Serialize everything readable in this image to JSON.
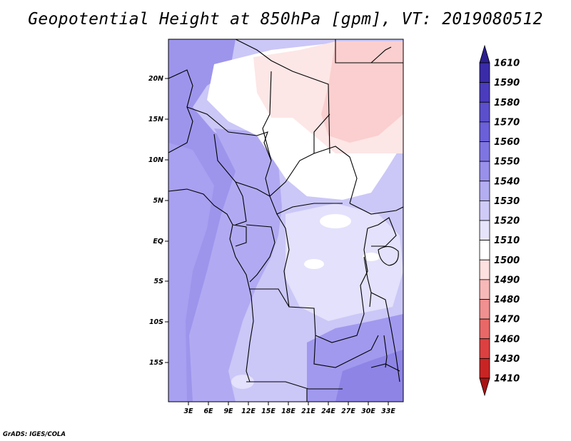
{
  "title": "Geopotential Height at 850hPa [gpm], VT: 2019080512",
  "credit": "GrADS: IGES/COLA",
  "lat_ticks": [
    "20N",
    "15N",
    "10N",
    "5N",
    "EQ",
    "5S",
    "10S",
    "15S"
  ],
  "lon_ticks": [
    "3E",
    "6E",
    "9E",
    "12E",
    "15E",
    "18E",
    "21E",
    "24E",
    "27E",
    "30E",
    "33E"
  ],
  "colorbar": {
    "labels": [
      "1610",
      "1590",
      "1580",
      "1570",
      "1560",
      "1550",
      "1540",
      "1530",
      "1520",
      "1510",
      "1500",
      "1490",
      "1480",
      "1470",
      "1460",
      "1430",
      "1410"
    ],
    "colors": [
      "#2c1f8e",
      "#3a2ba8",
      "#4a3cbc",
      "#5b4fcc",
      "#6b60d8",
      "#7f75e2",
      "#9890ea",
      "#b3adf1",
      "#cfcbf7",
      "#e6e4fb",
      "#ffffff",
      "#fde0e0",
      "#f7b8b8",
      "#f09090",
      "#e86868",
      "#dc4040",
      "#c82424",
      "#a81414"
    ]
  },
  "map": {
    "lon_range": [
      0,
      34.5
    ],
    "lat_range": [
      -20,
      24.5
    ],
    "region_colors": {
      "h1545": "#9d95ec",
      "h1535": "#b1aaf2",
      "h1525": "#cbc7f7",
      "h1515": "#e3e1fb",
      "h1510": "#ffffff",
      "h1505": "#fde6e6",
      "h1500": "#fbcfcf"
    }
  }
}
